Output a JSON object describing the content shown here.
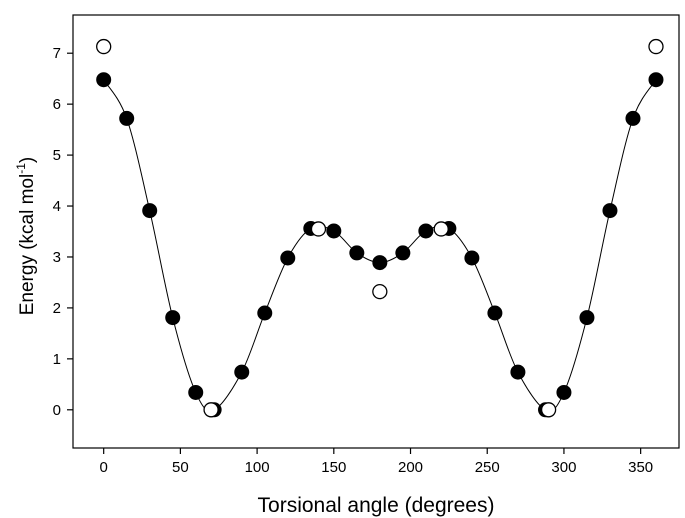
{
  "chart_data": {
    "type": "scatter",
    "title": "",
    "xlabel": "Torsional angle (degrees)",
    "ylabel_parts": [
      "Energy (kcal mol",
      "-1",
      ")"
    ],
    "xlim": [
      -20,
      375
    ],
    "ylim": [
      -0.75,
      7.75
    ],
    "x_ticks": [
      0,
      50,
      100,
      150,
      200,
      250,
      300,
      350
    ],
    "y_ticks": [
      0,
      1,
      2,
      3,
      4,
      5,
      6,
      7
    ],
    "grid": false,
    "series": [
      {
        "marker": "filled-circle",
        "x": [
          0,
          15,
          30,
          45,
          60,
          72,
          90,
          105,
          120,
          135,
          150,
          165,
          180,
          195,
          210,
          225,
          240,
          255,
          270,
          288,
          300,
          315,
          330,
          345,
          360
        ],
        "y": [
          6.48,
          5.72,
          3.91,
          1.81,
          0.34,
          0.0,
          0.74,
          1.9,
          2.98,
          3.56,
          3.51,
          3.08,
          2.89,
          3.08,
          3.51,
          3.56,
          2.98,
          1.9,
          0.74,
          0.0,
          0.34,
          1.81,
          3.91,
          5.72,
          6.48
        ]
      },
      {
        "marker": "open-circle",
        "x": [
          0,
          70,
          140,
          180,
          220,
          290,
          360
        ],
        "y": [
          7.13,
          0.0,
          3.55,
          2.32,
          3.55,
          0.0,
          7.13
        ]
      }
    ],
    "fit_line": {
      "style": "smooth-curve",
      "x": [
        0,
        15,
        30,
        45,
        60,
        72,
        90,
        105,
        120,
        135,
        150,
        165,
        180,
        195,
        210,
        225,
        240,
        255,
        270,
        288,
        300,
        315,
        330,
        345,
        360
      ],
      "y": [
        6.48,
        5.72,
        3.91,
        1.81,
        0.34,
        0.0,
        0.74,
        1.9,
        2.98,
        3.56,
        3.51,
        3.08,
        2.89,
        3.08,
        3.51,
        3.56,
        2.98,
        1.9,
        0.74,
        0.0,
        0.34,
        1.81,
        3.91,
        5.72,
        6.48
      ]
    }
  }
}
